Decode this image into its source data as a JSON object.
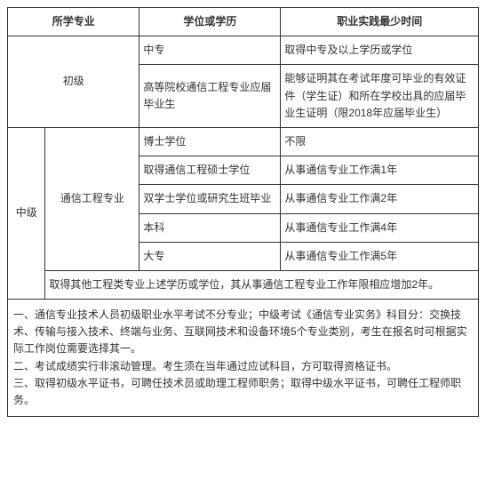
{
  "headers": {
    "col_major": "所学专业",
    "col_degree": "学位或学历",
    "col_practice": "职业实践最少时间"
  },
  "junior": {
    "level": "初级",
    "row1": {
      "degree": "中专",
      "practice": "取得中专及以上学历或学位"
    },
    "row2": {
      "degree": "高等院校通信工程专业应届毕业生",
      "practice": "能够证明其在考试年度可毕业的有效证件（学生证）和所在学校出具的应届毕业生证明（限2018年应届毕业生）"
    }
  },
  "intermediate": {
    "level": "中级",
    "major": "通信工程专业",
    "rows": {
      "r1": {
        "degree": "博士学位",
        "practice": "不限"
      },
      "r2": {
        "degree": "取得通信工程硕士学位",
        "practice": "从事通信专业工作满1年"
      },
      "r3": {
        "degree": "双学士学位或研究生班毕业",
        "practice": "从事通信专业工作满2年"
      },
      "r4": {
        "degree": "本科",
        "practice": "从事通信专业工作满4年"
      },
      "r5": {
        "degree": "大专",
        "practice": "从事通信专业工作满5年"
      }
    },
    "other": "取得其他工程类专业上述学历或学位，其从事通信工程专业工作年限相应增加2年。"
  },
  "notes": {
    "n1": "一、通信专业技术人员初级职业水平考试不分专业；中级考试《通信专业实务》科目分：交换技术、传输与接入技术、终端与业务、互联网技术和设备环境5个专业类别，考生在报名时可根据实际工作岗位需要选择其一。",
    "n2": "二、考试成绩实行非滚动管理。考生须在当年通过应试科目，方可取得资格证书。",
    "n3": "三、取得初级水平证书，可聘任技术员或助理工程师职务；取得中级水平证书，可聘任工程师职务。"
  }
}
